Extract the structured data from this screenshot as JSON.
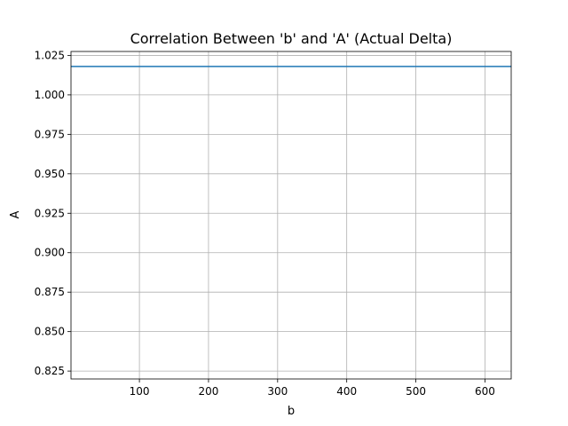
{
  "chart_data": {
    "type": "line",
    "title": "Correlation Between 'b' and 'A' (Actual Delta)",
    "xlabel": "b",
    "ylabel": "A",
    "xlim": [
      1,
      638
    ],
    "ylim": [
      0.82,
      1.0275
    ],
    "xticks": [
      100,
      200,
      300,
      400,
      500,
      600
    ],
    "xtick_labels": [
      "100",
      "200",
      "300",
      "400",
      "500",
      "600"
    ],
    "yticks": [
      0.825,
      0.85,
      0.875,
      0.9,
      0.925,
      0.95,
      0.975,
      1.0,
      1.025
    ],
    "ytick_labels": [
      "0.825",
      "0.850",
      "0.875",
      "0.900",
      "0.925",
      "0.950",
      "0.975",
      "1.000",
      "1.025"
    ],
    "grid": true,
    "series": [
      {
        "color": "#1f77b4",
        "x": [
          1,
          638
        ],
        "y": [
          1.018,
          1.018
        ]
      }
    ]
  }
}
